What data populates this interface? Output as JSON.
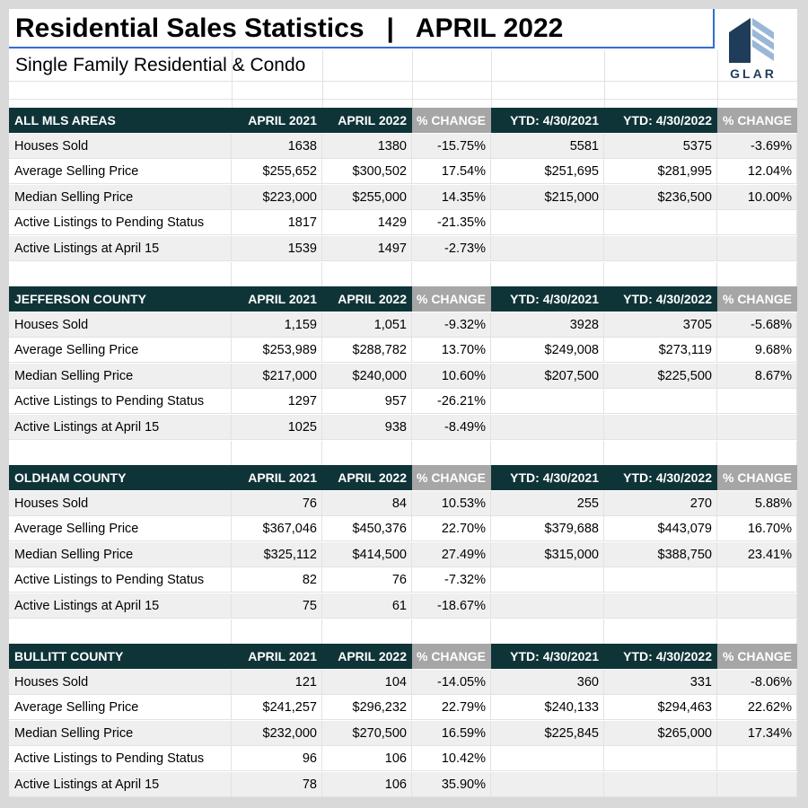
{
  "title": "Residential Sales Statistics   |   APRIL 2022",
  "subtitle": "Single Family Residential & Condo",
  "logo": {
    "icon": "glar-building-logo-icon",
    "text": "GLAR",
    "color": "#1f3d5a"
  },
  "colors": {
    "header_bg": "#0f3438",
    "change_header_bg": "#a6a6a6",
    "row_shade": "#efefef"
  },
  "columns": [
    "APRIL 2021",
    "APRIL 2022",
    "% CHANGE",
    "YTD: 4/30/2021",
    "YTD: 4/30/2022",
    "% CHANGE"
  ],
  "sections": [
    {
      "name": "ALL MLS AREAS",
      "rows": [
        {
          "label": "Houses Sold",
          "v": [
            "1638",
            "1380",
            "-15.75%",
            "5581",
            "5375",
            "-3.69%"
          ]
        },
        {
          "label": "Average Selling Price",
          "v": [
            "$255,652",
            "$300,502",
            "17.54%",
            "$251,695",
            "$281,995",
            "12.04%"
          ]
        },
        {
          "label": "Median Selling Price",
          "v": [
            "$223,000",
            "$255,000",
            "14.35%",
            "$215,000",
            "$236,500",
            "10.00%"
          ]
        },
        {
          "label": "Active Listings to Pending Status",
          "v": [
            "1817",
            "1429",
            "-21.35%",
            "",
            "",
            ""
          ]
        },
        {
          "label": "Active Listings at April 15",
          "v": [
            "1539",
            "1497",
            "-2.73%",
            "",
            "",
            ""
          ]
        }
      ]
    },
    {
      "name": "JEFFERSON COUNTY",
      "rows": [
        {
          "label": "Houses Sold",
          "v": [
            "1,159",
            "1,051",
            "-9.32%",
            "3928",
            "3705",
            "-5.68%"
          ]
        },
        {
          "label": "Average Selling Price",
          "v": [
            "$253,989",
            "$288,782",
            "13.70%",
            "$249,008",
            "$273,119",
            "9.68%"
          ]
        },
        {
          "label": "Median Selling Price",
          "v": [
            "$217,000",
            "$240,000",
            "10.60%",
            "$207,500",
            "$225,500",
            "8.67%"
          ]
        },
        {
          "label": "Active Listings to Pending Status",
          "v": [
            "1297",
            "957",
            "-26.21%",
            "",
            "",
            ""
          ]
        },
        {
          "label": "Active Listings at April 15",
          "v": [
            "1025",
            "938",
            "-8.49%",
            "",
            "",
            ""
          ]
        }
      ]
    },
    {
      "name": "OLDHAM COUNTY",
      "rows": [
        {
          "label": "Houses Sold",
          "v": [
            "76",
            "84",
            "10.53%",
            "255",
            "270",
            "5.88%"
          ]
        },
        {
          "label": "Average Selling Price",
          "v": [
            "$367,046",
            "$450,376",
            "22.70%",
            "$379,688",
            "$443,079",
            "16.70%"
          ]
        },
        {
          "label": "Median Selling Price",
          "v": [
            "$325,112",
            "$414,500",
            "27.49%",
            "$315,000",
            "$388,750",
            "23.41%"
          ]
        },
        {
          "label": "Active Listings to Pending Status",
          "v": [
            "82",
            "76",
            "-7.32%",
            "",
            "",
            ""
          ]
        },
        {
          "label": "Active Listings at April 15",
          "v": [
            "75",
            "61",
            "-18.67%",
            "",
            "",
            ""
          ]
        }
      ]
    },
    {
      "name": "BULLITT COUNTY",
      "rows": [
        {
          "label": "Houses Sold",
          "v": [
            "121",
            "104",
            "-14.05%",
            "360",
            "331",
            "-8.06%"
          ]
        },
        {
          "label": "Average Selling Price",
          "v": [
            "$241,257",
            "$296,232",
            "22.79%",
            "$240,133",
            "$294,463",
            "22.62%"
          ]
        },
        {
          "label": "Median Selling Price",
          "v": [
            "$232,000",
            "$270,500",
            "16.59%",
            "$225,845",
            "$265,000",
            "17.34%"
          ]
        },
        {
          "label": "Active Listings to Pending Status",
          "v": [
            "96",
            "106",
            "10.42%",
            "",
            "",
            ""
          ]
        },
        {
          "label": "Active Listings at April 15",
          "v": [
            "78",
            "106",
            "35.90%",
            "",
            "",
            ""
          ]
        }
      ]
    }
  ]
}
